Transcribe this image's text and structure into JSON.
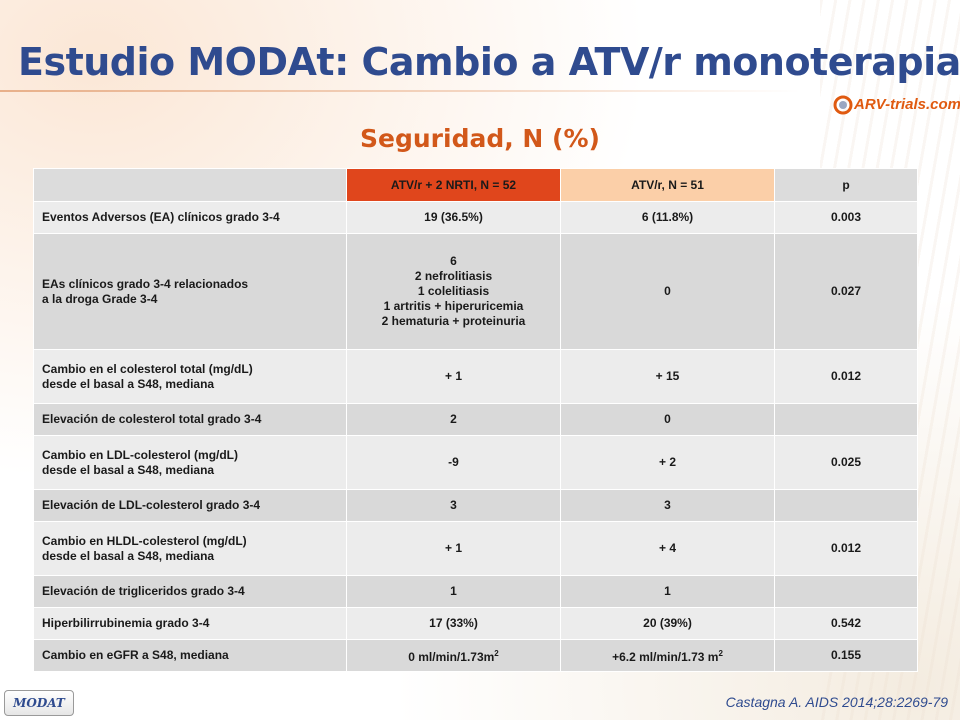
{
  "slide": {
    "title": "Estudio MODAt: Cambio a ATV/r monoterapia",
    "subtitle": "Seguridad, N (%)",
    "logo_text": "ARV-trials.com",
    "badge": "MODAT",
    "citation": "Castagna A. AIDS 2014;28:2269-79"
  },
  "table": {
    "headers": [
      "",
      "ATV/r + 2 NRTI, N = 52",
      "ATV/r, N = 51",
      "p"
    ],
    "rows": [
      {
        "label": [
          "Eventos Adversos (EA) clínicos grado 3-4"
        ],
        "c1": [
          "19 (36.5%)"
        ],
        "c2": "6 (11.8%)",
        "p": "0.003"
      },
      {
        "label": [
          "EAs clínicos grado 3-4 relacionados",
          "a la droga  Grade 3-4"
        ],
        "c1": [
          "6",
          "2 nefrolitiasis",
          "1 colelitiasis",
          "1 artritis + hiperuricemia",
          "2 hematuria + proteinuria"
        ],
        "c2": "0",
        "p": "0.027"
      },
      {
        "label": [
          "Cambio en el colesterol total (mg/dL)",
          "desde el basal a S48, mediana"
        ],
        "c1": [
          "+ 1"
        ],
        "c2": "+ 15",
        "p": "0.012"
      },
      {
        "label": [
          "Elevación de colesterol total grado  3-4"
        ],
        "c1": [
          "2"
        ],
        "c2": "0",
        "p": ""
      },
      {
        "label": [
          "Cambio en LDL-colesterol (mg/dL)",
          "desde el basal a S48, mediana"
        ],
        "c1": [
          "-9"
        ],
        "c2": "+ 2",
        "p": "0.025"
      },
      {
        "label": [
          "Elevación de LDL-colesterol grado 3-4"
        ],
        "c1": [
          "3"
        ],
        "c2": "3",
        "p": ""
      },
      {
        "label": [
          "Cambio en HLDL-colesterol (mg/dL)",
          "desde el basal a S48, mediana"
        ],
        "c1": [
          "+ 1"
        ],
        "c2": "+ 4",
        "p": "0.012"
      },
      {
        "label": [
          "Elevación de trigliceridos grado 3-4"
        ],
        "c1": [
          "1"
        ],
        "c2": "1",
        "p": ""
      },
      {
        "label": [
          "Hiperbilirrubinemia grado 3-4"
        ],
        "c1": [
          "17 (33%)"
        ],
        "c2": "20 (39%)",
        "p": "0.542"
      }
    ],
    "last_row": {
      "label": "Cambio en eGFR a S48, mediana",
      "c1_value": "0 ml/min/1.73m",
      "c1_sup": "2",
      "c2_value": "+6.2 ml/min/1.73 m",
      "c2_sup": "2",
      "p": "0.155"
    }
  },
  "colors": {
    "title": "#2f4b8f",
    "subtitle": "#d2581a",
    "header_arm1": "#e0461c",
    "header_arm2": "#fbcfa8",
    "row_light": "#ececec",
    "row_dark": "#d9d9d9"
  },
  "icons": {
    "logo": "arv-trials-swoosh-icon"
  }
}
